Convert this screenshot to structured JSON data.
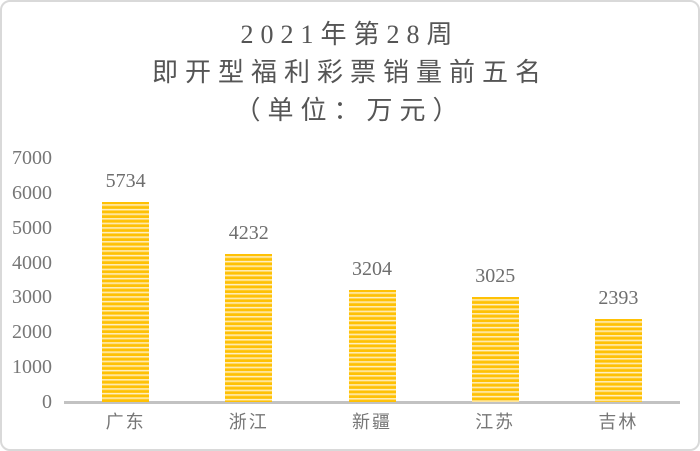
{
  "title": {
    "line1": "2021年第28周",
    "line2": "即开型福利彩票销量前五名",
    "line3": "（单位：万元）"
  },
  "chart_data": {
    "type": "bar",
    "title": "2021年第28周 即开型福利彩票销量前五名（单位：万元）",
    "categories": [
      "广东",
      "浙江",
      "新疆",
      "江苏",
      "吉林"
    ],
    "values": [
      5734,
      4232,
      3204,
      3025,
      2393
    ],
    "data_labels": [
      "5734",
      "4232",
      "3204",
      "3025",
      "2393"
    ],
    "xlabel": "",
    "ylabel": "",
    "ylim": [
      0,
      7000
    ],
    "yticks": [
      0,
      1000,
      2000,
      3000,
      4000,
      5000,
      6000,
      7000
    ],
    "grid": false,
    "legend": false,
    "colors": {
      "bar_fill": "#FFC000",
      "bar_stripe_light": "#FFF7E0",
      "axis_line": "#C2C2C2",
      "tick_text": "#777777",
      "label_text": "#6E6E6E",
      "title_text": "#555555"
    },
    "bar_pattern": "horizontal-stripes"
  }
}
